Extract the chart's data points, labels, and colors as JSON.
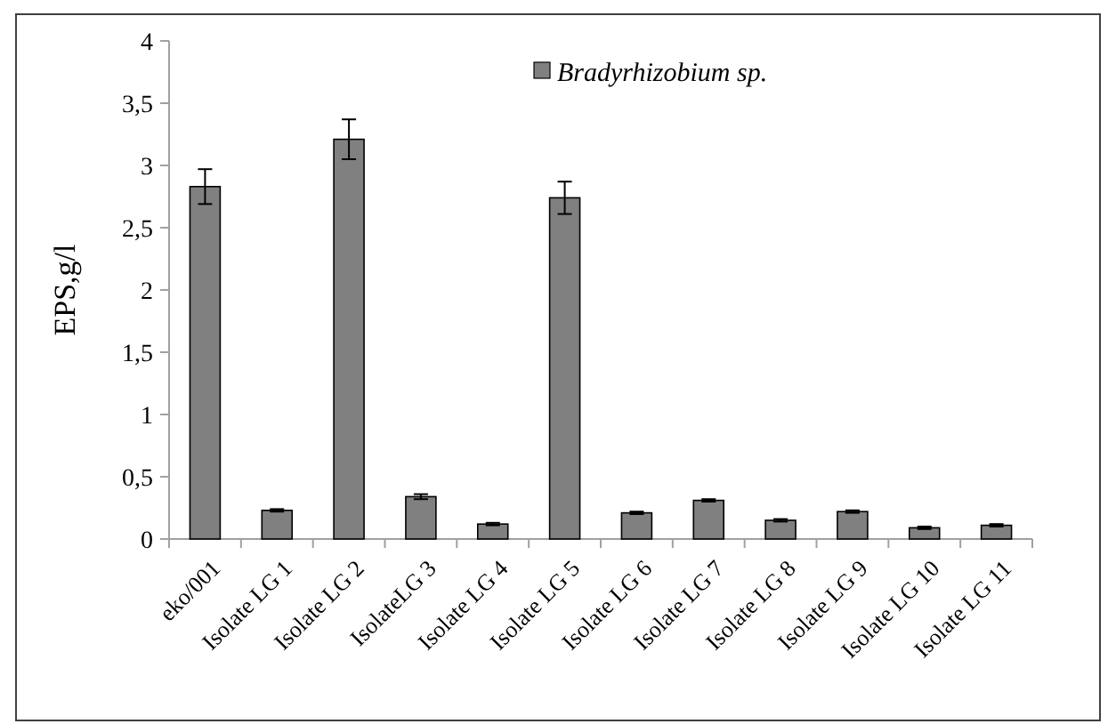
{
  "chart_data": {
    "type": "bar",
    "ylabel": "EPS,g/l",
    "categories": [
      "eko/001",
      "Isolate LG 1",
      "Isolate LG 2",
      "IsolateLG 3",
      "Isolate LG 4",
      "Isolate LG 5",
      "Isolate LG 6",
      "Isolate LG 7",
      "Isolate LG 8",
      "Isolate LG 9",
      "Isolate LG 10",
      "Isolate LG 11"
    ],
    "series": [
      {
        "name": "Bradyrhizobium sp.",
        "color": "#808080",
        "values": [
          2.83,
          0.23,
          3.21,
          0.34,
          0.12,
          2.74,
          0.21,
          0.31,
          0.15,
          0.22,
          0.09,
          0.11
        ],
        "errors": [
          0.14,
          0.01,
          0.16,
          0.02,
          0.01,
          0.13,
          0.01,
          0.01,
          0.01,
          0.01,
          0.01,
          0.01
        ]
      }
    ],
    "ylim": [
      0,
      4
    ],
    "yticks": [
      0,
      {
        "value": 0.5,
        "label": "0,5"
      },
      1,
      {
        "value": 1.5,
        "label": "1,5"
      },
      2,
      {
        "value": 2.5,
        "label": "2,5"
      },
      3,
      {
        "value": 3.5,
        "label": "3,5"
      },
      4
    ],
    "legend": "top",
    "grid": false
  }
}
